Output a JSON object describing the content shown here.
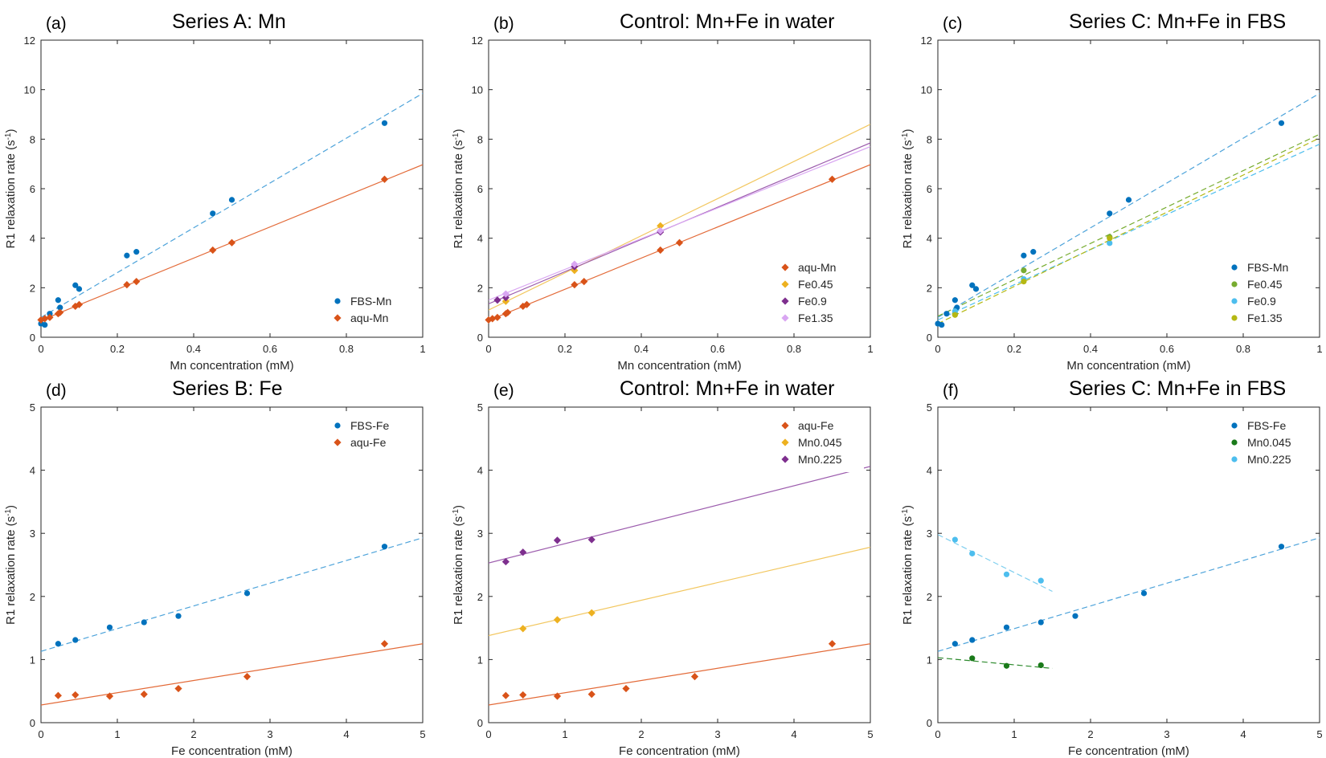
{
  "chart_data": [
    {
      "type": "scatter",
      "letter": "(a)",
      "title": "Series A: Mn",
      "xlabel": "Mn concentration (mM)",
      "ylabel": "R1 relaxation rate (s⁻¹)",
      "xlim": [
        0,
        1
      ],
      "ylim": [
        0,
        12
      ],
      "xticks": [
        0,
        0.2,
        0.4,
        0.6,
        0.8,
        1
      ],
      "yticks": [
        0,
        2,
        4,
        6,
        8,
        10,
        12
      ],
      "xtick_labels": [
        "0",
        "0.2",
        "0.4",
        "0.6",
        "0.8",
        "1"
      ],
      "ytick_labels": [
        "0",
        "2",
        "4",
        "6",
        "8",
        "10",
        "12"
      ],
      "legend_position": "bottom-right",
      "series": [
        {
          "name": "FBS-Mn",
          "color": "#0072BD",
          "marker": "circle",
          "line": "dashed",
          "line_color": "#4DA3DA",
          "x": [
            0,
            0.01,
            0.023,
            0.045,
            0.05,
            0.09,
            0.1,
            0.225,
            0.25,
            0.45,
            0.5,
            0.9
          ],
          "y": [
            0.55,
            0.5,
            0.95,
            1.5,
            1.2,
            2.1,
            1.95,
            3.3,
            3.45,
            5.0,
            5.55,
            8.65
          ],
          "fit": [
            [
              0,
              0.8
            ],
            [
              1,
              9.85
            ]
          ]
        },
        {
          "name": "aqu-Mn",
          "color": "#D95319",
          "marker": "diamond",
          "line": "solid",
          "line_color": "#E36A38",
          "x": [
            0,
            0.01,
            0.023,
            0.045,
            0.05,
            0.09,
            0.1,
            0.225,
            0.25,
            0.45,
            0.5,
            0.9
          ],
          "y": [
            0.7,
            0.75,
            0.8,
            0.95,
            1.0,
            1.25,
            1.32,
            2.12,
            2.25,
            3.52,
            3.82,
            6.38
          ],
          "fit": [
            [
              0,
              0.68
            ],
            [
              1,
              6.97
            ]
          ]
        }
      ]
    },
    {
      "type": "scatter",
      "letter": "(b)",
      "title": "Control: Mn+Fe in water",
      "xlabel": "Mn concentration (mM)",
      "ylabel": "R1 relaxation rate (s⁻¹)",
      "xlim": [
        0,
        1
      ],
      "ylim": [
        0,
        12
      ],
      "xticks": [
        0,
        0.2,
        0.4,
        0.6,
        0.8,
        1
      ],
      "yticks": [
        0,
        2,
        4,
        6,
        8,
        10,
        12
      ],
      "xtick_labels": [
        "0",
        "0.2",
        "0.4",
        "0.6",
        "0.8",
        "1"
      ],
      "ytick_labels": [
        "0",
        "2",
        "4",
        "6",
        "8",
        "10",
        "12"
      ],
      "legend_position": "bottom-right",
      "series": [
        {
          "name": "aqu-Mn",
          "color": "#D95319",
          "marker": "diamond",
          "line": "solid",
          "line_color": "#E36A38",
          "x": [
            0,
            0.01,
            0.023,
            0.045,
            0.05,
            0.09,
            0.1,
            0.225,
            0.25,
            0.45,
            0.5,
            0.9
          ],
          "y": [
            0.7,
            0.75,
            0.8,
            0.95,
            1.0,
            1.25,
            1.32,
            2.12,
            2.25,
            3.52,
            3.82,
            6.38
          ],
          "fit": [
            [
              0,
              0.68
            ],
            [
              1,
              6.97
            ]
          ]
        },
        {
          "name": "Fe0.45",
          "color": "#EDB120",
          "marker": "diamond",
          "line": "solid",
          "line_color": "#F2C760",
          "x": [
            0.045,
            0.225,
            0.45
          ],
          "y": [
            1.45,
            2.7,
            4.5
          ],
          "fit": [
            [
              0,
              1.1
            ],
            [
              1,
              8.6
            ]
          ]
        },
        {
          "name": "Fe0.9",
          "color": "#7E2F8E",
          "marker": "diamond",
          "line": "solid",
          "line_color": "#9C5CAD",
          "x": [
            0.023,
            0.045,
            0.225,
            0.45
          ],
          "y": [
            1.5,
            1.6,
            2.85,
            4.25
          ],
          "fit": [
            [
              0,
              1.35
            ],
            [
              1,
              7.85
            ]
          ]
        },
        {
          "name": "Fe1.35",
          "color": "#D9A6F2",
          "marker": "diamond",
          "line": "solid",
          "line_color": "#D9A6F2",
          "x": [
            0.045,
            0.225,
            0.45
          ],
          "y": [
            1.75,
            2.95,
            4.3
          ],
          "fit": [
            [
              0,
              1.5
            ],
            [
              1,
              7.7
            ]
          ]
        }
      ]
    },
    {
      "type": "scatter",
      "letter": "(c)",
      "title": "Series C: Mn+Fe in FBS",
      "xlabel": "Mn concentration (mM)",
      "ylabel": "R1 relaxation rate (s⁻¹)",
      "xlim": [
        0,
        1
      ],
      "ylim": [
        0,
        12
      ],
      "xticks": [
        0,
        0.2,
        0.4,
        0.6,
        0.8,
        1
      ],
      "yticks": [
        0,
        2,
        4,
        6,
        8,
        10,
        12
      ],
      "xtick_labels": [
        "0",
        "0.2",
        "0.4",
        "0.6",
        "0.8",
        "1"
      ],
      "ytick_labels": [
        "0",
        "2",
        "4",
        "6",
        "8",
        "10",
        "12"
      ],
      "legend_position": "bottom-right",
      "series": [
        {
          "name": "FBS-Mn",
          "color": "#0072BD",
          "marker": "circle",
          "line": "dashed",
          "line_color": "#4DA3DA",
          "x": [
            0,
            0.01,
            0.023,
            0.045,
            0.05,
            0.09,
            0.1,
            0.225,
            0.25,
            0.45,
            0.5,
            0.9
          ],
          "y": [
            0.55,
            0.5,
            0.95,
            1.5,
            1.2,
            2.1,
            1.95,
            3.3,
            3.45,
            5.0,
            5.55,
            8.65
          ],
          "fit": [
            [
              0,
              0.8
            ],
            [
              1,
              9.85
            ]
          ]
        },
        {
          "name": "Fe0.45",
          "color": "#77AC30",
          "marker": "circle",
          "line": "dashed",
          "line_color": "#77AC30",
          "x": [
            0.045,
            0.225,
            0.45
          ],
          "y": [
            0.95,
            2.7,
            4.05
          ],
          "fit": [
            [
              0,
              0.85
            ],
            [
              1,
              8.2
            ]
          ]
        },
        {
          "name": "Fe0.9",
          "color": "#4DBEEE",
          "marker": "circle",
          "line": "dashed",
          "line_color": "#4DBEEE",
          "x": [
            0.045,
            0.225,
            0.45
          ],
          "y": [
            1.05,
            2.35,
            3.8
          ],
          "fit": [
            [
              0,
              0.7
            ],
            [
              1,
              7.8
            ]
          ]
        },
        {
          "name": "Fe1.35",
          "color": "#B5B813",
          "marker": "circle",
          "line": "dashed",
          "line_color": "#B5B813",
          "x": [
            0.045,
            0.225,
            0.45
          ],
          "y": [
            0.9,
            2.25,
            4.0
          ],
          "fit": [
            [
              0,
              0.55
            ],
            [
              1,
              8.05
            ]
          ]
        }
      ]
    },
    {
      "type": "scatter",
      "letter": "(d)",
      "title": "Series B: Fe",
      "xlabel": "Fe concentration (mM)",
      "ylabel": "R1 relaxation rate (s⁻¹)",
      "xlim": [
        0,
        5
      ],
      "ylim": [
        0,
        5
      ],
      "xticks": [
        0,
        1,
        2,
        3,
        4,
        5
      ],
      "yticks": [
        0,
        1,
        2,
        3,
        4,
        5
      ],
      "xtick_labels": [
        "0",
        "1",
        "2",
        "3",
        "4",
        "5"
      ],
      "ytick_labels": [
        "0",
        "1",
        "2",
        "3",
        "4",
        "5"
      ],
      "legend_position": "top-right",
      "series": [
        {
          "name": "FBS-Fe",
          "color": "#0072BD",
          "marker": "circle",
          "line": "dashed",
          "line_color": "#4DA3DA",
          "x": [
            0.225,
            0.45,
            0.9,
            1.35,
            1.8,
            2.7,
            4.5
          ],
          "y": [
            1.25,
            1.31,
            1.51,
            1.59,
            1.69,
            2.05,
            2.79
          ],
          "fit": [
            [
              0,
              1.13
            ],
            [
              5,
              2.93
            ]
          ]
        },
        {
          "name": "aqu-Fe",
          "color": "#D95319",
          "marker": "diamond",
          "line": "solid",
          "line_color": "#E36A38",
          "x": [
            0.225,
            0.45,
            0.9,
            1.35,
            1.8,
            2.7,
            4.5
          ],
          "y": [
            0.43,
            0.44,
            0.42,
            0.45,
            0.54,
            0.73,
            1.25
          ],
          "fit": [
            [
              0,
              0.28
            ],
            [
              5,
              1.25
            ]
          ]
        }
      ]
    },
    {
      "type": "scatter",
      "letter": "(e)",
      "title": "Control: Mn+Fe in water",
      "xlabel": "Fe concentration (mM)",
      "ylabel": "R1 relaxation rate (s⁻¹)",
      "xlim": [
        0,
        5
      ],
      "ylim": [
        0,
        5
      ],
      "xticks": [
        0,
        1,
        2,
        3,
        4,
        5
      ],
      "yticks": [
        0,
        1,
        2,
        3,
        4,
        5
      ],
      "xtick_labels": [
        "0",
        "1",
        "2",
        "3",
        "4",
        "5"
      ],
      "ytick_labels": [
        "0",
        "1",
        "2",
        "3",
        "4",
        "5"
      ],
      "legend_position": "top-right",
      "series": [
        {
          "name": "aqu-Fe",
          "color": "#D95319",
          "marker": "diamond",
          "line": "solid",
          "line_color": "#E36A38",
          "x": [
            0.225,
            0.45,
            0.9,
            1.35,
            1.8,
            2.7,
            4.5
          ],
          "y": [
            0.43,
            0.44,
            0.42,
            0.45,
            0.54,
            0.73,
            1.25
          ],
          "fit": [
            [
              0,
              0.28
            ],
            [
              5,
              1.25
            ]
          ]
        },
        {
          "name": "Mn0.045",
          "color": "#EDB120",
          "marker": "diamond",
          "line": "solid",
          "line_color": "#F2C760",
          "x": [
            0.45,
            0.9,
            1.35
          ],
          "y": [
            1.49,
            1.63,
            1.74
          ],
          "fit": [
            [
              0,
              1.38
            ],
            [
              5,
              2.78
            ]
          ]
        },
        {
          "name": "Mn0.225",
          "color": "#7E2F8E",
          "marker": "diamond",
          "line": "solid",
          "line_color": "#9C5CAD",
          "x": [
            0.225,
            0.45,
            0.9,
            1.35
          ],
          "y": [
            2.55,
            2.7,
            2.89,
            2.9
          ],
          "fit": [
            [
              0,
              2.53
            ],
            [
              5,
              4.06
            ]
          ]
        }
      ]
    },
    {
      "type": "scatter",
      "letter": "(f)",
      "title": "Series C: Mn+Fe in FBS",
      "xlabel": "Fe concentration (mM)",
      "ylabel": "R1 relaxation rate (s⁻¹)",
      "xlim": [
        0,
        5
      ],
      "ylim": [
        0,
        5
      ],
      "xticks": [
        0,
        1,
        2,
        3,
        4,
        5
      ],
      "yticks": [
        0,
        1,
        2,
        3,
        4,
        5
      ],
      "xtick_labels": [
        "0",
        "1",
        "2",
        "3",
        "4",
        "5"
      ],
      "ytick_labels": [
        "0",
        "1",
        "2",
        "3",
        "4",
        "5"
      ],
      "legend_position": "top-right",
      "series": [
        {
          "name": "FBS-Fe",
          "color": "#0072BD",
          "marker": "circle",
          "line": "dashed",
          "line_color": "#4DA3DA",
          "x": [
            0.225,
            0.45,
            0.9,
            1.35,
            1.8,
            2.7,
            4.5
          ],
          "y": [
            1.25,
            1.31,
            1.51,
            1.59,
            1.69,
            2.05,
            2.79
          ],
          "fit": [
            [
              0,
              1.13
            ],
            [
              5,
              2.93
            ]
          ]
        },
        {
          "name": "Mn0.045",
          "color": "#1A7A1A",
          "marker": "circle",
          "line": "dashed",
          "line_color": "#2E8B2E",
          "x": [
            0.45,
            0.9,
            1.35
          ],
          "y": [
            1.02,
            0.9,
            0.91
          ],
          "fit": [
            [
              0,
              1.03
            ],
            [
              1.5,
              0.86
            ]
          ]
        },
        {
          "name": "Mn0.225",
          "color": "#4DBEEE",
          "marker": "circle",
          "line": "dashed",
          "line_color": "#7FCFEF",
          "x": [
            0.225,
            0.45,
            0.9,
            1.35
          ],
          "y": [
            2.9,
            2.68,
            2.35,
            2.25
          ],
          "fit": [
            [
              0,
              2.98
            ],
            [
              1.5,
              2.08
            ]
          ]
        }
      ]
    }
  ]
}
